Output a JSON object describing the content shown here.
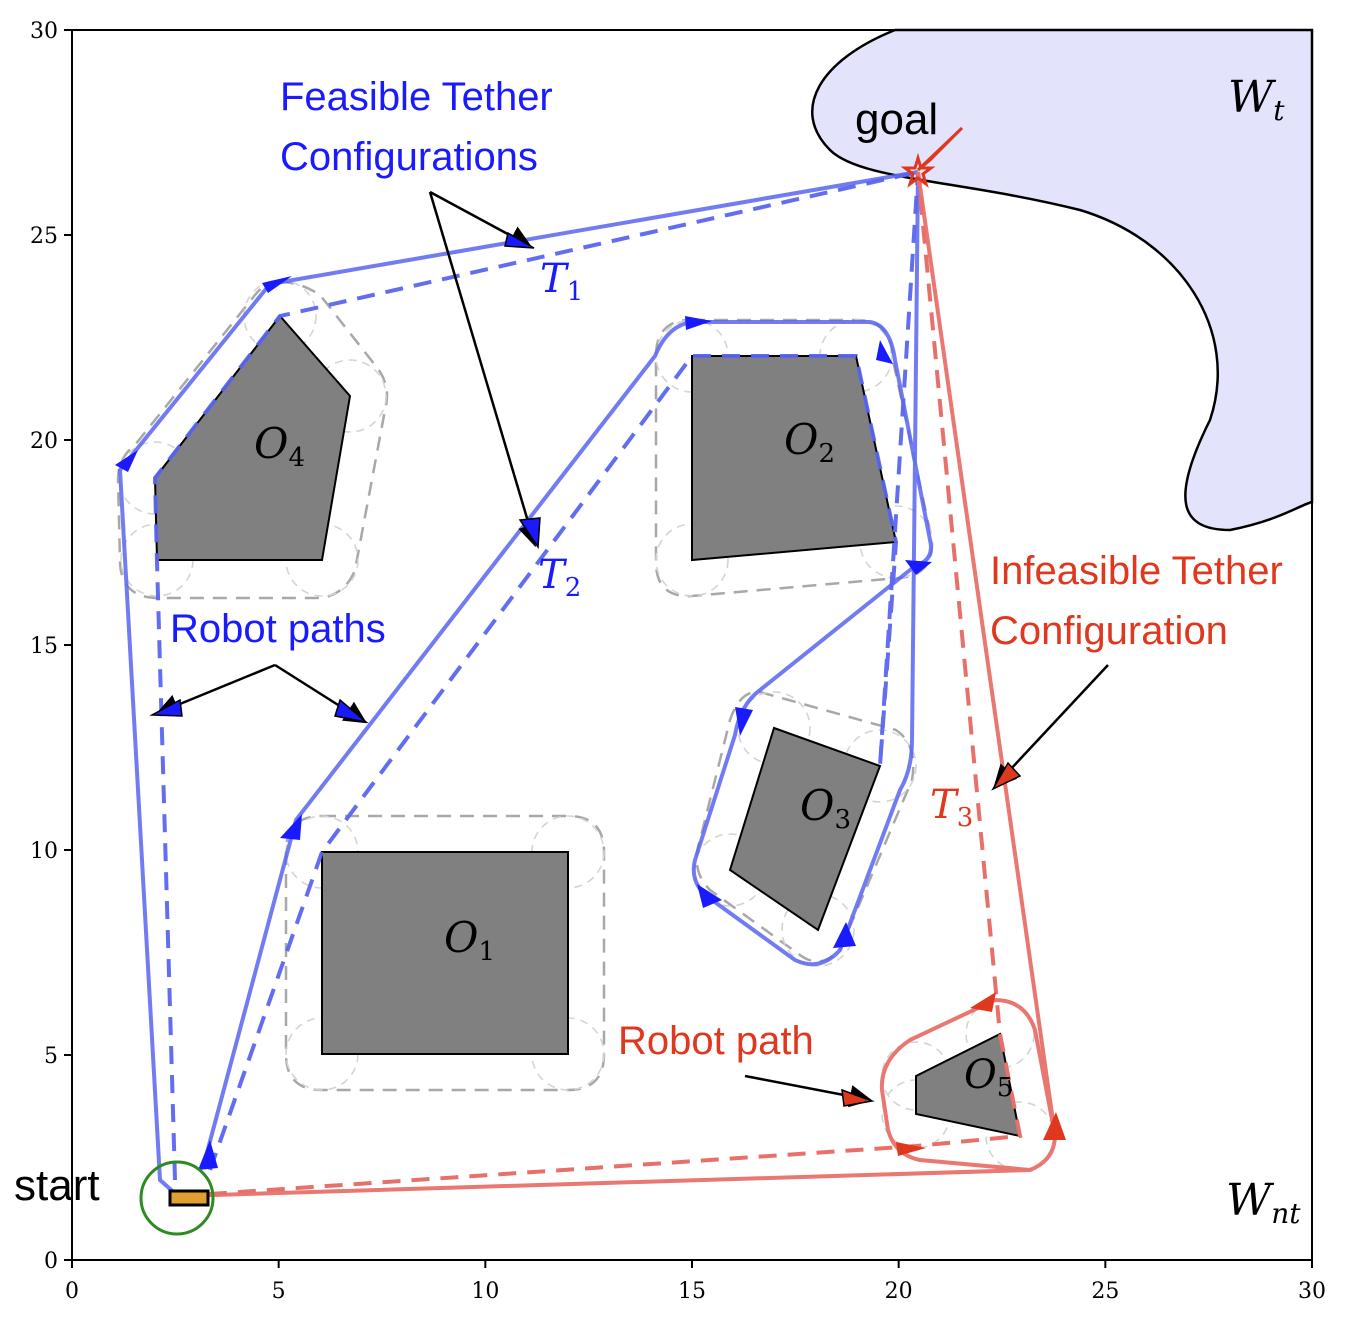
{
  "axes": {
    "x_ticks": [
      "0",
      "5",
      "10",
      "15",
      "20",
      "25",
      "30"
    ],
    "y_ticks": [
      "0",
      "5",
      "10",
      "15",
      "20",
      "25",
      "30"
    ],
    "xlim": [
      0,
      30
    ],
    "ylim": [
      0,
      30
    ]
  },
  "labels": {
    "start": "start",
    "goal": "goal",
    "feasible_line1": "Feasible Tether",
    "feasible_line2": "Configurations",
    "infeasible_line1": "Infeasible Tether",
    "infeasible_line2": "Configuration",
    "robot_paths": "Robot paths",
    "robot_path": "Robot path"
  },
  "math_labels": {
    "region_tethered": {
      "base": "W",
      "sub": "t"
    },
    "region_untethered": {
      "base": "W",
      "sub": "nt"
    },
    "tether_1": {
      "base": "T",
      "sub": "1"
    },
    "tether_2": {
      "base": "T",
      "sub": "2"
    },
    "tether_3": {
      "base": "T",
      "sub": "3"
    },
    "obstacle_1": {
      "base": "O",
      "sub": "1"
    },
    "obstacle_2": {
      "base": "O",
      "sub": "2"
    },
    "obstacle_3": {
      "base": "O",
      "sub": "3"
    },
    "obstacle_4": {
      "base": "O",
      "sub": "4"
    },
    "obstacle_5": {
      "base": "O",
      "sub": "5"
    }
  },
  "colors": {
    "feasible": "#1a1aff",
    "path_blue": "#5a66f0",
    "infeasible": "#e0381e",
    "path_red": "#e8706a",
    "obstacle_fill": "#808080",
    "region_fill": "#e3e3fb",
    "inflation": "#a8a8a8",
    "start_circle": "#2e8b22"
  }
}
